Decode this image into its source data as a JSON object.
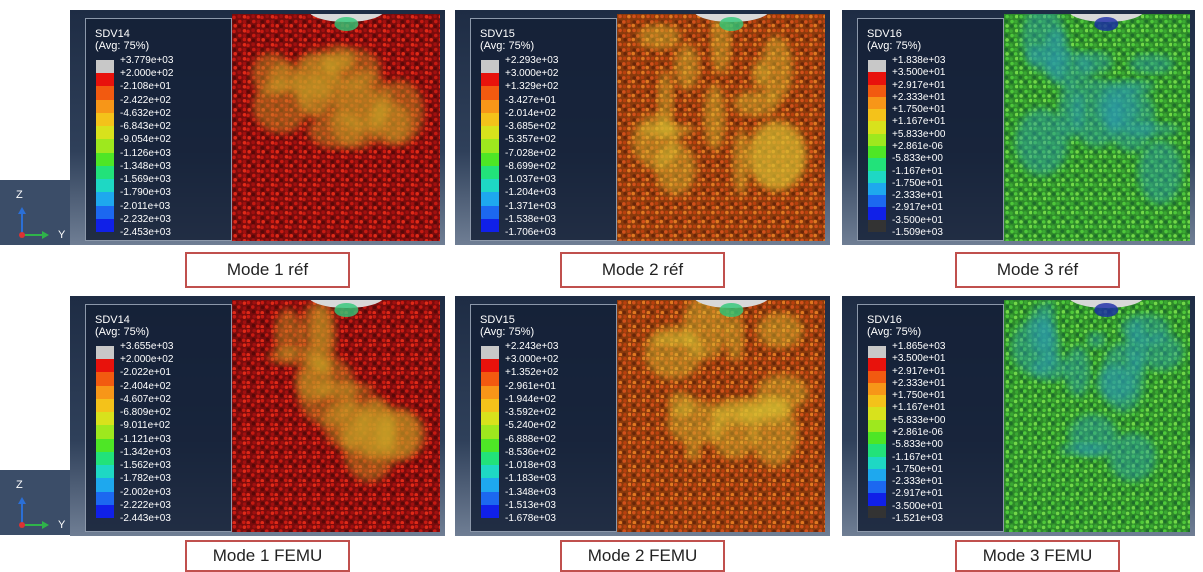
{
  "triad": {
    "z": "Z",
    "y": "Y"
  },
  "panels": [
    {
      "title": "SDV14",
      "avg": "(Avg: 75%)",
      "caption": "Mode 1 réf",
      "labels": [
        "+3.779e+03",
        "+2.000e+02",
        "-2.108e+01",
        "-2.422e+02",
        "-4.632e+02",
        "-6.843e+02",
        "-9.054e+02",
        "-1.126e+03",
        "-1.348e+03",
        "-1.569e+03",
        "-1.790e+03",
        "-2.011e+03",
        "-2.232e+03",
        "-2.453e+03"
      ]
    },
    {
      "title": "SDV15",
      "avg": "(Avg: 75%)",
      "caption": "Mode 2 réf",
      "labels": [
        "+2.293e+03",
        "+3.000e+02",
        "+1.329e+02",
        "-3.427e+01",
        "-2.014e+02",
        "-3.685e+02",
        "-5.357e+02",
        "-7.028e+02",
        "-8.699e+02",
        "-1.037e+03",
        "-1.204e+03",
        "-1.371e+03",
        "-1.538e+03",
        "-1.706e+03"
      ]
    },
    {
      "title": "SDV16",
      "avg": "(Avg: 75%)",
      "caption": "Mode 3 réf",
      "labels": [
        "+1.838e+03",
        "+3.500e+01",
        "+2.917e+01",
        "+2.333e+01",
        "+1.750e+01",
        "+1.167e+01",
        "+5.833e+00",
        "+2.861e-06",
        "-5.833e+00",
        "-1.167e+01",
        "-1.750e+01",
        "-2.333e+01",
        "-2.917e+01",
        "-3.500e+01",
        "-1.509e+03"
      ]
    },
    {
      "title": "SDV14",
      "avg": "(Avg: 75%)",
      "caption": "Mode 1 FEMU",
      "labels": [
        "+3.655e+03",
        "+2.000e+02",
        "-2.022e+01",
        "-2.404e+02",
        "-4.607e+02",
        "-6.809e+02",
        "-9.011e+02",
        "-1.121e+03",
        "-1.342e+03",
        "-1.562e+03",
        "-1.782e+03",
        "-2.002e+03",
        "-2.222e+03",
        "-2.443e+03"
      ]
    },
    {
      "title": "SDV15",
      "avg": "(Avg: 75%)",
      "caption": "Mode 2 FEMU",
      "labels": [
        "+2.243e+03",
        "+3.000e+02",
        "+1.352e+02",
        "-2.961e+01",
        "-1.944e+02",
        "-3.592e+02",
        "-5.240e+02",
        "-6.888e+02",
        "-8.536e+02",
        "-1.018e+03",
        "-1.183e+03",
        "-1.348e+03",
        "-1.513e+03",
        "-1.678e+03"
      ]
    },
    {
      "title": "SDV16",
      "avg": "(Avg: 75%)",
      "caption": "Mode 3 FEMU",
      "labels": [
        "+1.865e+03",
        "+3.500e+01",
        "+2.917e+01",
        "+2.333e+01",
        "+1.750e+01",
        "+1.167e+01",
        "+5.833e+00",
        "+2.861e-06",
        "-5.833e+00",
        "-1.167e+01",
        "-1.750e+01",
        "-2.333e+01",
        "-2.917e+01",
        "-3.500e+01",
        "-1.521e+03"
      ]
    }
  ]
}
